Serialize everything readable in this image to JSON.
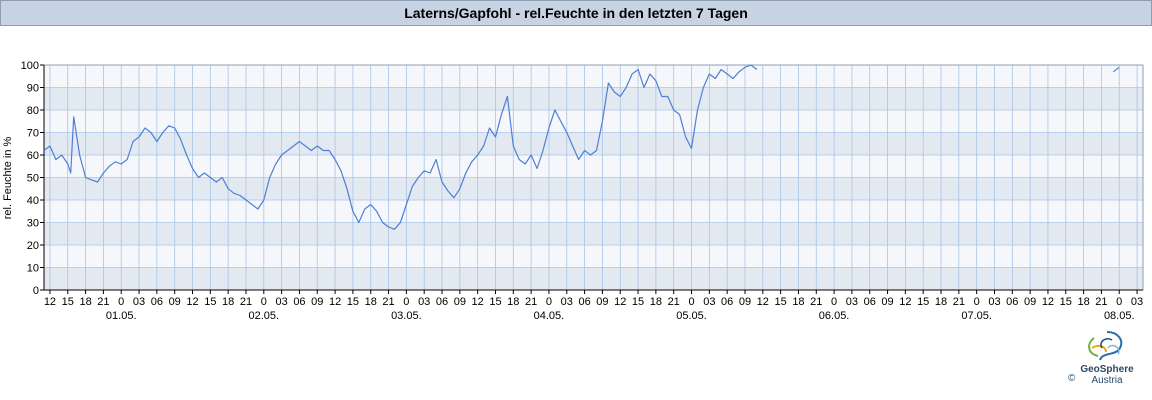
{
  "header": {
    "title": "Laterns/Gapfohl - rel.Feuchte in den letzten 7 Tagen"
  },
  "logo": {
    "name": "GeoSphere",
    "sub": "Austria",
    "copyright": "©"
  },
  "colors": {
    "line": "#4f7fd6",
    "band_dark": "#e3e9f1",
    "band_light": "#f5f7fa",
    "grid": "#a9c4e8",
    "title_bg": "#c7d3e3"
  },
  "chart_data": {
    "type": "line",
    "title": "Laterns/Gapfohl - rel.Feuchte in den letzten 7 Tagen",
    "xlabel": "",
    "ylabel": "rel. Feuchte in %",
    "ylim": [
      0,
      100
    ],
    "yticks": [
      0,
      10,
      20,
      30,
      40,
      50,
      60,
      70,
      80,
      90,
      100
    ],
    "grid": true,
    "x_range": [
      "30.04. 11:00",
      "08.05. 04:00"
    ],
    "x_tick_labels": [
      "12",
      "15",
      "18",
      "21",
      "0",
      "03",
      "06",
      "09",
      "12",
      "15",
      "18",
      "21",
      "0",
      "03",
      "06",
      "09",
      "12",
      "15",
      "18",
      "21",
      "0",
      "03",
      "06",
      "09",
      "12",
      "15",
      "18",
      "21",
      "0",
      "03",
      "06",
      "09",
      "12",
      "15",
      "18",
      "21",
      "0",
      "03",
      "06",
      "09",
      "12",
      "15",
      "18",
      "21",
      "0",
      "03",
      "06",
      "09",
      "12",
      "15",
      "18",
      "21",
      "0",
      "03",
      "06",
      "09",
      "12",
      "15",
      "18",
      "21",
      "0",
      "03"
    ],
    "date_labels": [
      "01.05.",
      "02.05.",
      "03.05.",
      "04.05.",
      "05.05.",
      "06.05.",
      "07.05.",
      "08.05."
    ],
    "series": [
      {
        "segments": [
          {
            "x": [
              "30.04. 11:00",
              "30.04. 12:00",
              "30.04. 13:00",
              "30.04. 14:00",
              "30.04. 15:00",
              "30.04. 15:30",
              "30.04. 16:00",
              "30.04. 17:00",
              "30.04. 18:00",
              "30.04. 19:00",
              "30.04. 20:00",
              "30.04. 21:00",
              "30.04. 22:00",
              "30.04. 23:00",
              "01.05. 00:00",
              "01.05. 01:00",
              "01.05. 02:00",
              "01.05. 03:00",
              "01.05. 04:00",
              "01.05. 05:00",
              "01.05. 06:00",
              "01.05. 07:00",
              "01.05. 08:00",
              "01.05. 09:00",
              "01.05. 10:00",
              "01.05. 11:00",
              "01.05. 12:00",
              "01.05. 13:00",
              "01.05. 14:00",
              "01.05. 15:00",
              "01.05. 16:00",
              "01.05. 17:00",
              "01.05. 18:00",
              "01.05. 19:00",
              "01.05. 20:00",
              "01.05. 21:00",
              "01.05. 22:00",
              "01.05. 23:00",
              "02.05. 00:00",
              "02.05. 01:00",
              "02.05. 02:00",
              "02.05. 03:00",
              "02.05. 04:00",
              "02.05. 05:00",
              "02.05. 06:00",
              "02.05. 07:00",
              "02.05. 08:00",
              "02.05. 09:00",
              "02.05. 10:00",
              "02.05. 11:00",
              "02.05. 12:00",
              "02.05. 13:00",
              "02.05. 14:00",
              "02.05. 15:00",
              "02.05. 16:00",
              "02.05. 17:00",
              "02.05. 18:00",
              "02.05. 19:00",
              "02.05. 20:00",
              "02.05. 21:00",
              "02.05. 22:00",
              "02.05. 23:00",
              "03.05. 00:00",
              "03.05. 01:00",
              "03.05. 02:00",
              "03.05. 03:00",
              "03.05. 04:00",
              "03.05. 05:00",
              "03.05. 06:00",
              "03.05. 07:00",
              "03.05. 08:00",
              "03.05. 09:00",
              "03.05. 10:00",
              "03.05. 11:00",
              "03.05. 12:00",
              "03.05. 13:00",
              "03.05. 14:00",
              "03.05. 15:00",
              "03.05. 16:00",
              "03.05. 17:00",
              "03.05. 18:00",
              "03.05. 19:00",
              "03.05. 20:00",
              "03.05. 21:00",
              "03.05. 22:00",
              "03.05. 23:00",
              "04.05. 00:00",
              "04.05. 01:00",
              "04.05. 02:00",
              "04.05. 03:00",
              "04.05. 04:00",
              "04.05. 05:00",
              "04.05. 06:00",
              "04.05. 07:00",
              "04.05. 08:00",
              "04.05. 09:00",
              "04.05. 10:00",
              "04.05. 11:00",
              "04.05. 12:00",
              "04.05. 13:00",
              "04.05. 14:00",
              "04.05. 15:00",
              "04.05. 16:00",
              "04.05. 17:00",
              "04.05. 18:00",
              "04.05. 19:00",
              "04.05. 20:00",
              "04.05. 21:00",
              "04.05. 22:00",
              "04.05. 23:00",
              "05.05. 00:00",
              "05.05. 01:00",
              "05.05. 02:00",
              "05.05. 03:00",
              "05.05. 04:00",
              "05.05. 05:00",
              "05.05. 06:00",
              "05.05. 07:00",
              "05.05. 08:00",
              "05.05. 09:00",
              "05.05. 10:00",
              "05.05. 11:00"
            ],
            "y": [
              62,
              64,
              58,
              60,
              56,
              52,
              77,
              60,
              50,
              49,
              48,
              52,
              55,
              57,
              56,
              58,
              66,
              68,
              72,
              70,
              66,
              70,
              73,
              72,
              67,
              60,
              54,
              50,
              52,
              50,
              48,
              50,
              45,
              43,
              42,
              40,
              38,
              36,
              40,
              50,
              56,
              60,
              62,
              64,
              66,
              64,
              62,
              64,
              62,
              62,
              58,
              53,
              45,
              35,
              30,
              36,
              38,
              35,
              30,
              28,
              27,
              30,
              38,
              46,
              50,
              53,
              52,
              58,
              48,
              44,
              41,
              45,
              52,
              57,
              60,
              64,
              72,
              68,
              78,
              86,
              64,
              58,
              56,
              60,
              54,
              62,
              72,
              80,
              75,
              70,
              64,
              58,
              62,
              60,
              62,
              75,
              92,
              88,
              86,
              90,
              96,
              98,
              90,
              96,
              93,
              86,
              86,
              80,
              78,
              68,
              63,
              80,
              90,
              96,
              94,
              98,
              96,
              94,
              97,
              99,
              100,
              98
            ]
          },
          {
            "x": [
              "07.05. 23:00",
              "08.05. 00:00"
            ],
            "y": [
              97,
              99
            ]
          }
        ]
      }
    ]
  }
}
